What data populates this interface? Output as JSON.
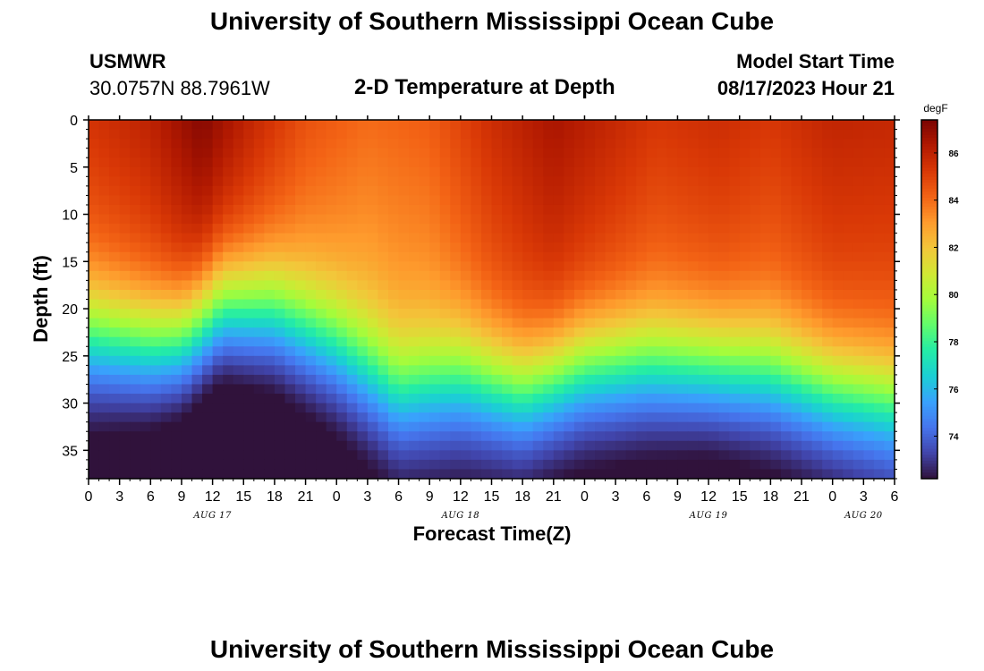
{
  "header": {
    "title": "University of Southern Mississippi Ocean Cube",
    "station": "USMWR",
    "coordinates": "30.0757N  88.7961W",
    "plot_title": "2-D Temperature at Depth",
    "model_start_label": "Model Start Time",
    "model_start_value": "08/17/2023 Hour 21"
  },
  "footer": {
    "title": "University of Southern Mississippi Ocean Cube"
  },
  "colors": {
    "colormap": [
      "#30123b",
      "#4145ab",
      "#4675ed",
      "#39a2fc",
      "#1bcfd4",
      "#24eca6",
      "#61fc6c",
      "#a4fc3b",
      "#d1e834",
      "#f3c63a",
      "#fe9b2d",
      "#f36315",
      "#d93806",
      "#b11901",
      "#7a0402"
    ]
  },
  "chart_data": {
    "type": "heatmap",
    "title": "2-D Temperature at Depth",
    "xlabel": "Forecast Time(Z)",
    "ylabel": "Depth (ft)",
    "x_ticks": [
      "0",
      "3",
      "6",
      "9",
      "12",
      "15",
      "18",
      "21",
      "0",
      "3",
      "6",
      "9",
      "12",
      "15",
      "18",
      "21",
      "0",
      "3",
      "6",
      "9",
      "12",
      "15",
      "18",
      "21",
      "0",
      "3",
      "6"
    ],
    "x_range_hours": [
      0,
      78
    ],
    "date_labels": [
      {
        "label": "AUG 17",
        "hour": 12
      },
      {
        "label": "AUG 18",
        "hour": 36
      },
      {
        "label": "AUG 19",
        "hour": 60
      },
      {
        "label": "AUG 20",
        "hour": 75
      }
    ],
    "y_ticks": [
      "0",
      "5",
      "10",
      "15",
      "20",
      "25",
      "30",
      "35"
    ],
    "y_tick_values": [
      0,
      5,
      10,
      15,
      20,
      25,
      30,
      35
    ],
    "y_range_ft": [
      0,
      38
    ],
    "colorbar": {
      "unit": "degF",
      "range": [
        72.2,
        87.4
      ],
      "ticks": [
        "74",
        "76",
        "78",
        "80",
        "82",
        "84",
        "86"
      ],
      "tick_values": [
        74,
        76,
        78,
        80,
        82,
        84,
        86
      ]
    },
    "surface_temp_degF": {
      "hours": [
        0,
        6,
        11,
        16,
        21,
        27,
        33,
        39,
        45,
        50,
        55,
        61,
        66,
        72,
        78
      ],
      "values": [
        85.4,
        86.0,
        87.2,
        85.8,
        84.6,
        84.0,
        84.3,
        85.6,
        86.5,
        85.9,
        85.3,
        85.6,
        85.3,
        85.9,
        85.8
      ]
    },
    "mixed_layer_depth_ft": {
      "hours": [
        0,
        6,
        9,
        13,
        18,
        24,
        30,
        36,
        42,
        48,
        54,
        60,
        66,
        72,
        78
      ],
      "values": [
        22.5,
        23.5,
        23.0,
        19.5,
        20.0,
        23.5,
        28.5,
        27.0,
        28.5,
        26.0,
        25.5,
        26.0,
        26.5,
        28.5,
        29.5
      ]
    },
    "bottom_temp_degF": {
      "hours": [
        0,
        12,
        24,
        36,
        48,
        60,
        72,
        78
      ],
      "values": [
        73.2,
        72.4,
        72.9,
        73.4,
        73.3,
        72.9,
        73.4,
        73.8
      ]
    }
  }
}
